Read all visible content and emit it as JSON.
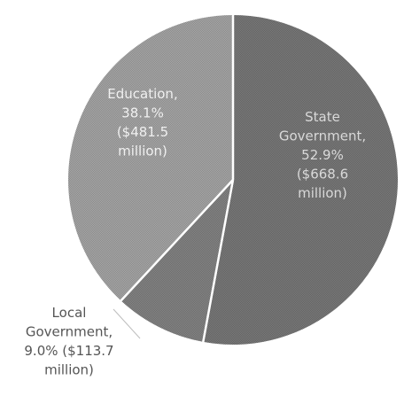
{
  "chart_data": {
    "type": "pie",
    "title": "",
    "slices": [
      {
        "category": "State Government",
        "percent": 52.9,
        "amount": "$668.6 million",
        "label_lines": [
          "State",
          "Government,",
          "52.9%",
          "($668.6",
          "million)"
        ],
        "color": "#7a7a7a",
        "label_color": "#d9d9d9"
      },
      {
        "category": "Local Government",
        "percent": 9.0,
        "amount": "$113.7 million",
        "label_lines": [
          "Local",
          "Government,",
          "9.0% ($113.7",
          "million)"
        ],
        "color": "#858585",
        "label_color": "#555555"
      },
      {
        "category": "Education",
        "percent": 38.1,
        "amount": "$481.5 million",
        "label_lines": [
          "Education,",
          "38.1%",
          "($481.5",
          "million)"
        ],
        "color": "#a8a8a8",
        "label_color": "#f0f0f0"
      }
    ],
    "start_angle_deg": 0,
    "direction": "clockwise",
    "legend": "none",
    "background": "#ffffff",
    "separator_color": "#ffffff"
  }
}
